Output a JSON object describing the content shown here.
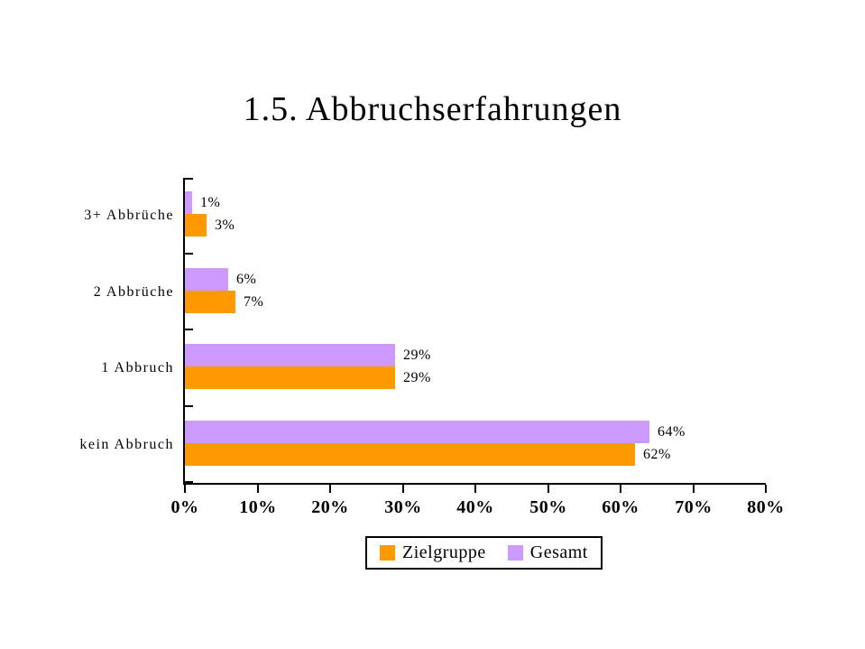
{
  "title": "1.5. Abbruchserfahrungen",
  "chart_data": {
    "type": "bar",
    "orientation": "horizontal",
    "title": "1.5. Abbruchserfahrungen",
    "categories": [
      "3+ Abbrüche",
      "2 Abbrüche",
      "1 Abbruch",
      "kein Abbruch"
    ],
    "category_order": "top-to-bottom",
    "series": [
      {
        "name": "Zielgruppe",
        "color": "#FF9900",
        "values": [
          3,
          7,
          29,
          62
        ],
        "data_labels": [
          "3%",
          "7%",
          "29%",
          "62%"
        ]
      },
      {
        "name": "Gesamt",
        "color": "#CC99FF",
        "values": [
          1,
          6,
          29,
          64
        ],
        "data_labels": [
          "1%",
          "6%",
          "29%",
          "64%"
        ]
      }
    ],
    "bar_order_top_to_bottom_within_category": [
      "Gesamt",
      "Zielgruppe"
    ],
    "xlim": [
      0,
      80
    ],
    "x_ticks": [
      "0%",
      "10%",
      "20%",
      "30%",
      "40%",
      "50%",
      "60%",
      "70%",
      "80%"
    ],
    "grid": false,
    "legend": [
      "Zielgruppe",
      "Gesamt"
    ],
    "legend_position": "bottom-center"
  },
  "colors": {
    "background": "#FFFFFF",
    "axis": "#000000",
    "text": "#000000",
    "zielgruppe": "#FF9900",
    "gesamt": "#CC99FF"
  }
}
